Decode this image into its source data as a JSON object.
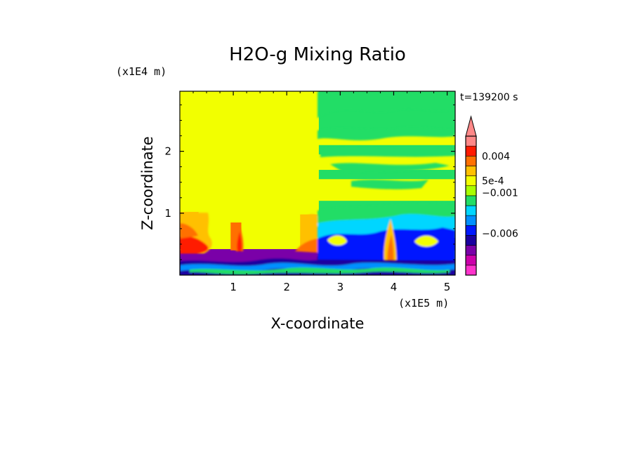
{
  "chart_data": {
    "type": "heatmap",
    "title": "H2O-g Mixing Ratio",
    "xlabel": "X-coordinate",
    "ylabel": "Z-coordinate",
    "x_unit": "(x1E5 m)",
    "y_unit": "(x1E4 m)",
    "time_label": "t=139200 s",
    "xlim": [
      0,
      5.15
    ],
    "ylim": [
      0,
      2.97
    ],
    "x_ticks": [
      1,
      2,
      3,
      4,
      5
    ],
    "y_ticks": [
      1,
      2
    ],
    "colorbar": {
      "labels": [
        {
          "text": "0.004",
          "value": 0.004
        },
        {
          "text": "5e-4",
          "value": 0.0005
        },
        {
          "text": "−0.001",
          "value": -0.001
        },
        {
          "text": "−0.006",
          "value": -0.006
        }
      ],
      "colors": [
        "#ff33cc",
        "#cc00aa",
        "#7a00a8",
        "#1a00a0",
        "#0018ff",
        "#0090ff",
        "#00d6ff",
        "#22dd66",
        "#a8ff00",
        "#f2ff00",
        "#ffc000",
        "#ff7000",
        "#ff1a00",
        "#ff8888"
      ],
      "extend": "max"
    },
    "regions": [
      {
        "x": [
          0,
          5.15
        ],
        "z": [
          0,
          2.97
        ],
        "level": "#f2ff00"
      },
      {
        "x": [
          0,
          5.15
        ],
        "z": [
          0,
          0.4
        ],
        "level": "#1a00a0"
      },
      {
        "x": [
          0,
          2.6
        ],
        "z": [
          0.3,
          0.42
        ],
        "level": "#7a00a8"
      },
      {
        "x": [
          0,
          0.35
        ],
        "z": [
          0.4,
          1.02
        ],
        "level": "#ffc000"
      },
      {
        "x": [
          0,
          0.3
        ],
        "z": [
          0.42,
          0.62
        ],
        "level": "#ff1a00"
      },
      {
        "x": [
          0.95,
          1.15
        ],
        "z": [
          0.4,
          0.85
        ],
        "level": "#ff7000"
      },
      {
        "x": [
          2.25,
          2.6
        ],
        "z": [
          0.4,
          0.98
        ],
        "level": "#ffc000"
      },
      {
        "x": [
          2.6,
          5.15
        ],
        "z": [
          0.25,
          0.95
        ],
        "level": "#00d6ff"
      },
      {
        "x": [
          2.6,
          5.15
        ],
        "z": [
          0.4,
          0.6
        ],
        "level": "#0018ff"
      },
      {
        "x": [
          3.75,
          4.05
        ],
        "z": [
          0.3,
          0.95
        ],
        "level": "#ffc000"
      },
      {
        "x": [
          2.6,
          5.15
        ],
        "z": [
          2.3,
          2.97
        ],
        "level": "#22dd66"
      },
      {
        "x": [
          2.6,
          5.15
        ],
        "z": [
          1.95,
          2.1
        ],
        "level": "#22dd66"
      },
      {
        "x": [
          2.6,
          5.15
        ],
        "z": [
          1.55,
          1.7
        ],
        "level": "#22dd66"
      },
      {
        "x": [
          2.6,
          5.15
        ],
        "z": [
          0.9,
          1.2
        ],
        "level": "#22dd66"
      }
    ]
  }
}
